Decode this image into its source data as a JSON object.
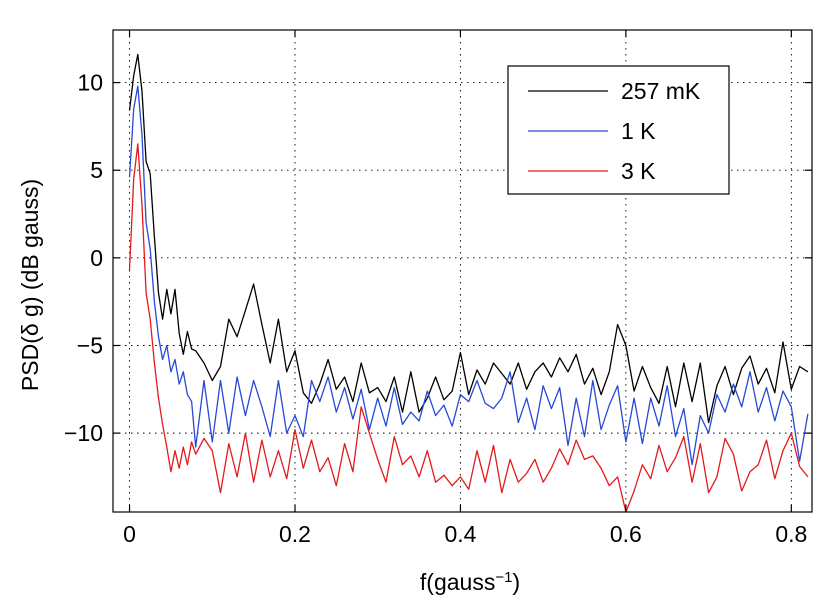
{
  "chart_data": {
    "type": "line",
    "title": "",
    "xlabel": "f(gauss",
    "xlabel_superscript": "−1",
    "xlabel_suffix": ")",
    "ylabel": "PSD(δ g) (dB gauss)",
    "xlim": [
      -0.02,
      0.825
    ],
    "ylim": [
      -14.5,
      13.0
    ],
    "xticks": [
      0,
      0.2,
      0.4,
      0.6,
      0.8
    ],
    "xtick_labels": [
      "0",
      "0.2",
      "0.4",
      "0.6",
      "0.8"
    ],
    "yticks": [
      10,
      5,
      0,
      -5,
      -10
    ],
    "ytick_labels": [
      "10",
      "5",
      "0",
      "−5",
      "−10"
    ],
    "grid": true,
    "legend_position": "top-right",
    "series": [
      {
        "name": "257 mK",
        "color": "#000000",
        "x": [
          0,
          0.005,
          0.01,
          0.015,
          0.02,
          0.025,
          0.03,
          0.035,
          0.04,
          0.045,
          0.05,
          0.055,
          0.06,
          0.065,
          0.07,
          0.075,
          0.08,
          0.09,
          0.1,
          0.11,
          0.12,
          0.13,
          0.14,
          0.15,
          0.16,
          0.17,
          0.18,
          0.19,
          0.2,
          0.21,
          0.22,
          0.23,
          0.24,
          0.25,
          0.26,
          0.27,
          0.28,
          0.29,
          0.3,
          0.31,
          0.32,
          0.33,
          0.34,
          0.35,
          0.36,
          0.37,
          0.38,
          0.39,
          0.4,
          0.41,
          0.42,
          0.43,
          0.44,
          0.45,
          0.46,
          0.47,
          0.48,
          0.49,
          0.5,
          0.51,
          0.52,
          0.53,
          0.54,
          0.55,
          0.56,
          0.57,
          0.58,
          0.59,
          0.6,
          0.61,
          0.62,
          0.63,
          0.64,
          0.65,
          0.66,
          0.67,
          0.68,
          0.69,
          0.7,
          0.71,
          0.72,
          0.73,
          0.74,
          0.75,
          0.76,
          0.77,
          0.78,
          0.79,
          0.8,
          0.81,
          0.82
        ],
        "values": [
          8.4,
          10.4,
          11.6,
          9.5,
          5.5,
          4.8,
          1.2,
          -2.0,
          -3.5,
          -1.8,
          -3.2,
          -1.8,
          -4.3,
          -5.5,
          -4.2,
          -5.2,
          -5.3,
          -6.0,
          -7.0,
          -6.2,
          -3.5,
          -4.5,
          -3.0,
          -1.5,
          -3.8,
          -6.0,
          -3.5,
          -6.5,
          -5.3,
          -7.7,
          -8.3,
          -7.2,
          -5.8,
          -7.5,
          -6.8,
          -8.2,
          -6.0,
          -7.7,
          -7.4,
          -8.2,
          -6.8,
          -8.8,
          -6.5,
          -8.8,
          -8.0,
          -6.8,
          -8.1,
          -7.6,
          -5.4,
          -7.8,
          -6.4,
          -7.2,
          -6.0,
          -6.6,
          -7.2,
          -6.0,
          -7.5,
          -6.5,
          -6.0,
          -6.8,
          -5.7,
          -6.5,
          -5.5,
          -7.2,
          -6.3,
          -7.8,
          -6.5,
          -3.8,
          -5.0,
          -7.6,
          -6.2,
          -7.4,
          -8.3,
          -6.2,
          -8.5,
          -6.0,
          -8.2,
          -6.0,
          -9.4,
          -7.3,
          -6.2,
          -7.8,
          -6.3,
          -5.6,
          -7.2,
          -6.3,
          -7.7,
          -4.8,
          -7.5,
          -6.2,
          -6.5
        ]
      },
      {
        "name": "1 K",
        "color": "#2649d6",
        "x": [
          0,
          0.005,
          0.01,
          0.015,
          0.02,
          0.025,
          0.03,
          0.035,
          0.04,
          0.045,
          0.05,
          0.055,
          0.06,
          0.065,
          0.07,
          0.075,
          0.08,
          0.09,
          0.1,
          0.11,
          0.12,
          0.13,
          0.14,
          0.15,
          0.16,
          0.17,
          0.18,
          0.19,
          0.2,
          0.21,
          0.22,
          0.23,
          0.24,
          0.25,
          0.26,
          0.27,
          0.28,
          0.29,
          0.3,
          0.31,
          0.32,
          0.33,
          0.34,
          0.35,
          0.36,
          0.37,
          0.38,
          0.39,
          0.4,
          0.41,
          0.42,
          0.43,
          0.44,
          0.45,
          0.46,
          0.47,
          0.48,
          0.49,
          0.5,
          0.51,
          0.52,
          0.53,
          0.54,
          0.55,
          0.56,
          0.57,
          0.58,
          0.59,
          0.6,
          0.61,
          0.62,
          0.63,
          0.64,
          0.65,
          0.66,
          0.67,
          0.68,
          0.69,
          0.7,
          0.71,
          0.72,
          0.73,
          0.74,
          0.75,
          0.76,
          0.77,
          0.78,
          0.79,
          0.8,
          0.81,
          0.82
        ],
        "values": [
          4.6,
          8.5,
          9.8,
          7.0,
          2.0,
          0.5,
          -2.5,
          -4.5,
          -5.8,
          -5.0,
          -6.5,
          -5.8,
          -7.2,
          -6.5,
          -7.8,
          -8.2,
          -10.8,
          -7.0,
          -10.5,
          -7.0,
          -10.0,
          -6.8,
          -9.0,
          -7.0,
          -8.5,
          -10.2,
          -7.0,
          -10.0,
          -9.0,
          -10.2,
          -7.0,
          -8.2,
          -6.8,
          -8.8,
          -7.4,
          -9.2,
          -7.5,
          -9.8,
          -8.0,
          -9.6,
          -7.4,
          -9.5,
          -8.8,
          -9.3,
          -7.6,
          -9.0,
          -8.4,
          -9.6,
          -7.8,
          -8.2,
          -7.0,
          -8.3,
          -8.6,
          -8.0,
          -6.5,
          -9.4,
          -8.0,
          -9.8,
          -7.3,
          -8.6,
          -7.4,
          -10.7,
          -8.0,
          -10.2,
          -7.0,
          -9.8,
          -8.4,
          -7.3,
          -10.5,
          -8.0,
          -10.6,
          -8.0,
          -9.6,
          -7.3,
          -10.2,
          -8.6,
          -11.8,
          -9.0,
          -10.0,
          -7.8,
          -8.8,
          -7.2,
          -8.5,
          -6.5,
          -8.8,
          -7.4,
          -9.3,
          -7.6,
          -8.5,
          -11.6,
          -8.9
        ]
      },
      {
        "name": "3 K",
        "color": "#e31a1c",
        "x": [
          0,
          0.005,
          0.01,
          0.015,
          0.02,
          0.025,
          0.03,
          0.035,
          0.04,
          0.045,
          0.05,
          0.055,
          0.06,
          0.065,
          0.07,
          0.075,
          0.08,
          0.09,
          0.1,
          0.11,
          0.12,
          0.13,
          0.14,
          0.15,
          0.16,
          0.17,
          0.18,
          0.19,
          0.2,
          0.21,
          0.22,
          0.23,
          0.24,
          0.25,
          0.26,
          0.27,
          0.28,
          0.29,
          0.3,
          0.31,
          0.32,
          0.33,
          0.34,
          0.35,
          0.36,
          0.37,
          0.38,
          0.39,
          0.4,
          0.41,
          0.42,
          0.43,
          0.44,
          0.45,
          0.46,
          0.47,
          0.48,
          0.49,
          0.5,
          0.51,
          0.52,
          0.53,
          0.54,
          0.55,
          0.56,
          0.57,
          0.58,
          0.59,
          0.6,
          0.61,
          0.62,
          0.63,
          0.64,
          0.65,
          0.66,
          0.67,
          0.68,
          0.69,
          0.7,
          0.71,
          0.72,
          0.73,
          0.74,
          0.75,
          0.76,
          0.77,
          0.78,
          0.79,
          0.8,
          0.81,
          0.82
        ],
        "values": [
          -0.7,
          4.5,
          6.5,
          3.0,
          -2.0,
          -3.5,
          -6.0,
          -8.0,
          -9.5,
          -10.8,
          -12.2,
          -11.0,
          -12.0,
          -10.8,
          -11.8,
          -10.5,
          -11.2,
          -10.3,
          -11.0,
          -13.4,
          -10.6,
          -12.5,
          -10.0,
          -12.8,
          -10.4,
          -12.5,
          -11.0,
          -12.6,
          -9.8,
          -12.0,
          -10.4,
          -12.2,
          -11.4,
          -13.0,
          -10.6,
          -12.2,
          -8.5,
          -10.0,
          -11.5,
          -12.8,
          -10.2,
          -11.8,
          -11.3,
          -12.5,
          -11.0,
          -12.8,
          -12.4,
          -13.0,
          -12.5,
          -13.2,
          -11.0,
          -12.8,
          -10.7,
          -13.4,
          -11.5,
          -12.8,
          -12.3,
          -11.5,
          -12.8,
          -12.0,
          -10.9,
          -11.8,
          -10.4,
          -11.5,
          -11.3,
          -12.0,
          -13.0,
          -12.5,
          -14.5,
          -13.3,
          -11.8,
          -12.6,
          -10.7,
          -12.2,
          -11.4,
          -10.2,
          -12.8,
          -10.6,
          -13.4,
          -12.5,
          -10.3,
          -11.2,
          -13.3,
          -12.2,
          -11.8,
          -10.4,
          -12.6,
          -11.0,
          -10.0,
          -11.9,
          -12.5
        ]
      }
    ]
  }
}
